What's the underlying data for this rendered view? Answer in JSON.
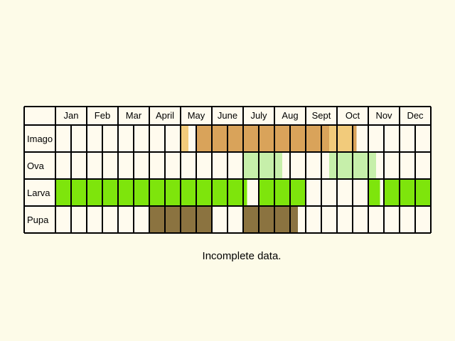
{
  "chart_data": {
    "type": "table",
    "months": [
      "Jan",
      "Feb",
      "Mar",
      "April",
      "May",
      "June",
      "July",
      "Aug",
      "Sept",
      "Oct",
      "Nov",
      "Dec"
    ],
    "rows": [
      {
        "label": "Imago",
        "segments": [
          {
            "from": 8.0,
            "to": 8.5,
            "color": "#f2cb7b"
          },
          {
            "from": 9.0,
            "to": 17.5,
            "color": "#d9a35a"
          },
          {
            "from": 17.5,
            "to": 19.0,
            "color": "#f2cb7b"
          },
          {
            "from": 19.0,
            "to": 19.25,
            "color": "#d9a35a"
          }
        ]
      },
      {
        "label": "Ova",
        "segments": [
          {
            "from": 12.0,
            "to": 14.5,
            "color": "#c6efaa"
          },
          {
            "from": 17.5,
            "to": 20.5,
            "color": "#c6efaa"
          }
        ]
      },
      {
        "label": "Larva",
        "segments": [
          {
            "from": 0.0,
            "to": 12.25,
            "color": "#7ee50c"
          },
          {
            "from": 13.0,
            "to": 16.0,
            "color": "#7ee50c"
          },
          {
            "from": 20.0,
            "to": 20.75,
            "color": "#7ee50c"
          },
          {
            "from": 21.0,
            "to": 24.0,
            "color": "#7ee50c"
          }
        ]
      },
      {
        "label": "Pupa",
        "segments": [
          {
            "from": 6.0,
            "to": 10.0,
            "color": "#8b7340"
          },
          {
            "from": 12.0,
            "to": 15.0,
            "color": "#8b7340"
          },
          {
            "from": 15.0,
            "to": 15.5,
            "color": "#8b7340"
          }
        ]
      }
    ],
    "units": "half-month columns (0 = start of Jan, 24 = end of Dec)"
  },
  "note": "Incomplete data.",
  "colors": {
    "background": "#fdfbe8",
    "grid": "#000000"
  }
}
